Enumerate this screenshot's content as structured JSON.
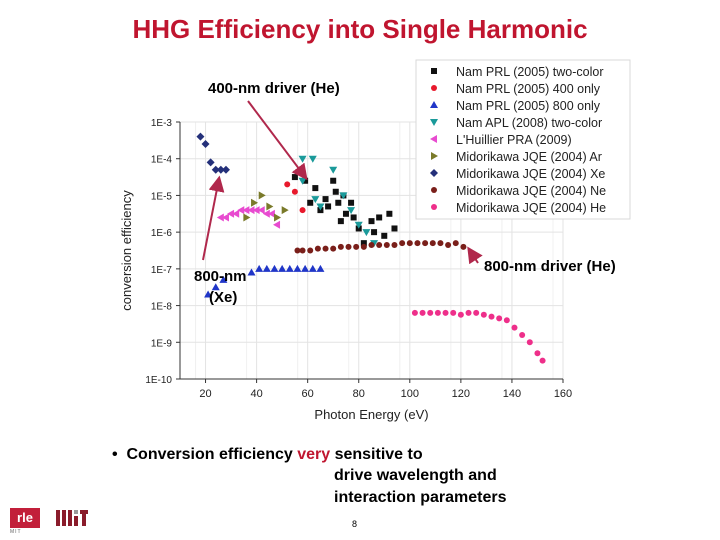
{
  "slide": {
    "title": "HHG Efficiency into Single Harmonic",
    "bullet_marker": "•",
    "bullet_prefix": "Conversion efficiency ",
    "bullet_emph": "very",
    "bullet_suffix": " sensitive to",
    "bullet_line2": "drive wavelength and",
    "bullet_line3": "interaction parameters",
    "page_number": "8",
    "logo_rle": "rle",
    "logo_rle_sub": "MIT",
    "accent_color": "#c0152f"
  },
  "chart_data": {
    "type": "scatter",
    "xlabel": "Photon Energy (eV)",
    "ylabel": "conversion efficiency",
    "xlim": [
      10,
      160
    ],
    "ylim_exp": [
      -10,
      -3
    ],
    "x_ticks": [
      "20",
      "40",
      "60",
      "80",
      "100",
      "120",
      "140",
      "160"
    ],
    "y_ticks": [
      "1E-3",
      "1E-4",
      "1E-5",
      "1E-6",
      "1E-7",
      "1E-8",
      "1E-9",
      "1E-10"
    ],
    "grid": true,
    "legend_position": "top-right",
    "series": [
      {
        "name": "Nam PRL (2005) two-color",
        "marker": "square",
        "color": "#111111",
        "points": [
          [
            55,
            -4.5
          ],
          [
            59,
            -4.6
          ],
          [
            61,
            -5.2
          ],
          [
            63,
            -4.8
          ],
          [
            65,
            -5.4
          ],
          [
            67,
            -5.1
          ],
          [
            68,
            -5.3
          ],
          [
            70,
            -4.6
          ],
          [
            71,
            -4.9
          ],
          [
            72,
            -5.2
          ],
          [
            73,
            -5.7
          ],
          [
            74,
            -5.0
          ],
          [
            75,
            -5.5
          ],
          [
            77,
            -5.2
          ],
          [
            78,
            -5.6
          ],
          [
            80,
            -5.9
          ],
          [
            82,
            -6.3
          ],
          [
            85,
            -5.7
          ],
          [
            86,
            -6.0
          ],
          [
            88,
            -5.6
          ],
          [
            90,
            -6.1
          ],
          [
            92,
            -5.5
          ],
          [
            94,
            -5.9
          ]
        ]
      },
      {
        "name": "Nam PRL (2005) 400 only",
        "marker": "circle",
        "color": "#e8192c",
        "points": [
          [
            52,
            -4.7
          ],
          [
            55,
            -4.9
          ],
          [
            58,
            -5.4
          ]
        ]
      },
      {
        "name": "Nam PRL (2005) 800 only",
        "marker": "triangle-up",
        "color": "#2036c8",
        "points": [
          [
            21,
            -7.7
          ],
          [
            24,
            -7.5
          ],
          [
            27,
            -7.3
          ],
          [
            38,
            -7.1
          ],
          [
            41,
            -7.0
          ],
          [
            44,
            -7.0
          ],
          [
            47,
            -7.0
          ],
          [
            50,
            -7.0
          ],
          [
            53,
            -7.0
          ],
          [
            56,
            -7.0
          ],
          [
            59,
            -7.0
          ],
          [
            62,
            -7.0
          ],
          [
            65,
            -7.0
          ]
        ]
      },
      {
        "name": "Nam APL (2008) two-color",
        "marker": "triangle-down",
        "color": "#1a9a9a",
        "points": [
          [
            58,
            -4.0
          ],
          [
            62,
            -4.0
          ],
          [
            58,
            -4.6
          ],
          [
            63,
            -5.1
          ],
          [
            65,
            -5.3
          ],
          [
            70,
            -4.3
          ],
          [
            74,
            -5.0
          ],
          [
            77,
            -5.4
          ],
          [
            80,
            -5.8
          ],
          [
            83,
            -6.0
          ],
          [
            86,
            -6.3
          ]
        ]
      },
      {
        "name": "L'Huillier PRA (2009)",
        "marker": "triangle-left",
        "color": "#e84bd0",
        "points": [
          [
            26,
            -5.6
          ],
          [
            28,
            -5.6
          ],
          [
            30,
            -5.5
          ],
          [
            32,
            -5.5
          ],
          [
            34,
            -5.4
          ],
          [
            36,
            -5.4
          ],
          [
            38,
            -5.4
          ],
          [
            40,
            -5.4
          ],
          [
            42,
            -5.4
          ],
          [
            44,
            -5.5
          ],
          [
            46,
            -5.5
          ],
          [
            48,
            -5.8
          ]
        ]
      },
      {
        "name": "Midorikawa JQE (2004) Ar",
        "marker": "triangle-right",
        "color": "#7a7a2a",
        "points": [
          [
            36,
            -5.6
          ],
          [
            39,
            -5.2
          ],
          [
            42,
            -5.0
          ],
          [
            45,
            -5.3
          ],
          [
            48,
            -5.6
          ],
          [
            51,
            -5.4
          ]
        ]
      },
      {
        "name": "Midorikawa JQE (2004) Xe",
        "marker": "diamond",
        "color": "#24307a",
        "points": [
          [
            18,
            -3.4
          ],
          [
            20,
            -3.6
          ],
          [
            22,
            -4.1
          ],
          [
            24,
            -4.3
          ],
          [
            26,
            -4.3
          ],
          [
            28,
            -4.3
          ]
        ]
      },
      {
        "name": "Midorikawa JQE (2004) Ne",
        "marker": "circle",
        "color": "#7a1f1a",
        "points": [
          [
            56,
            -6.5
          ],
          [
            58,
            -6.5
          ],
          [
            61,
            -6.5
          ],
          [
            64,
            -6.45
          ],
          [
            67,
            -6.45
          ],
          [
            70,
            -6.45
          ],
          [
            73,
            -6.4
          ],
          [
            76,
            -6.4
          ],
          [
            79,
            -6.4
          ],
          [
            82,
            -6.4
          ],
          [
            85,
            -6.35
          ],
          [
            88,
            -6.35
          ],
          [
            91,
            -6.35
          ],
          [
            94,
            -6.35
          ],
          [
            97,
            -6.3
          ],
          [
            100,
            -6.3
          ],
          [
            103,
            -6.3
          ],
          [
            106,
            -6.3
          ],
          [
            109,
            -6.3
          ],
          [
            112,
            -6.3
          ],
          [
            115,
            -6.35
          ],
          [
            118,
            -6.3
          ],
          [
            121,
            -6.4
          ]
        ]
      },
      {
        "name": "Midorikawa JQE (2004) He",
        "marker": "circle",
        "color": "#ee2f8a",
        "points": [
          [
            102,
            -8.2
          ],
          [
            105,
            -8.2
          ],
          [
            108,
            -8.2
          ],
          [
            111,
            -8.2
          ],
          [
            114,
            -8.2
          ],
          [
            117,
            -8.2
          ],
          [
            120,
            -8.25
          ],
          [
            123,
            -8.2
          ],
          [
            126,
            -8.2
          ],
          [
            129,
            -8.25
          ],
          [
            132,
            -8.3
          ],
          [
            135,
            -8.35
          ],
          [
            138,
            -8.4
          ],
          [
            141,
            -8.6
          ],
          [
            144,
            -8.8
          ],
          [
            147,
            -9.0
          ],
          [
            150,
            -9.3
          ],
          [
            152,
            -9.5
          ]
        ]
      }
    ],
    "annotations": [
      {
        "text": "400-nm driver (He)",
        "target": [
          61,
          -4.5
        ]
      },
      {
        "text": "800-nm driver (He)",
        "target": [
          121,
          -6.4
        ]
      },
      {
        "text": "800-nm",
        "text2": "(Xe)",
        "target": [
          26,
          -4.4
        ]
      }
    ]
  }
}
